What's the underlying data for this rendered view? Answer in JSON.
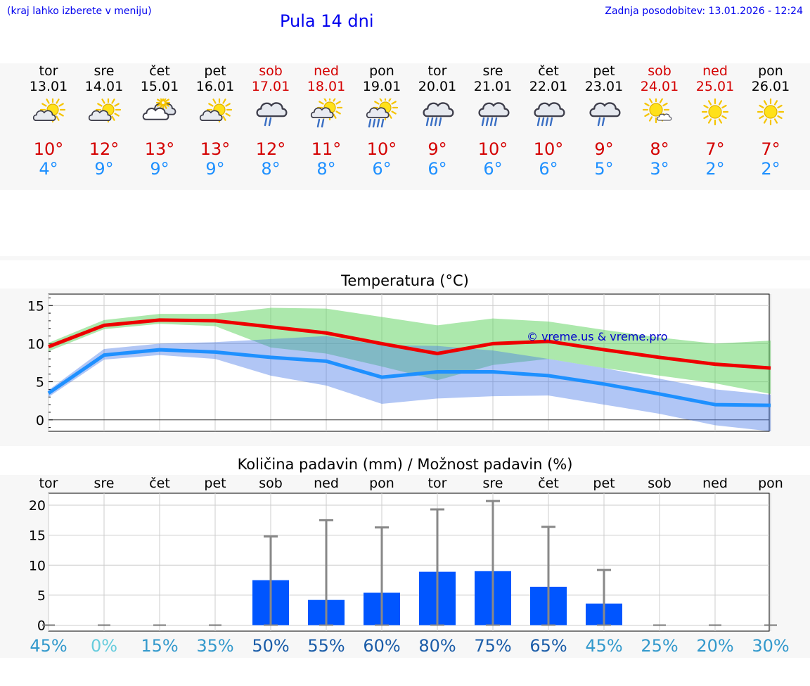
{
  "header": {
    "hint": "(kraj lahko izberete v meniju)",
    "title": "Pula 14 dni",
    "updated": "Zadnja posodobitev: 13.01.2026 - 12:24"
  },
  "colors": {
    "max": "#d40000",
    "min": "#1e90ff",
    "link": "#0000ee",
    "bar": "#0055ff"
  },
  "days": [
    {
      "name": "tor",
      "date": "13.01",
      "weekend": false,
      "icon": "partly-cloudy-icon",
      "max": "10°",
      "min": "4°"
    },
    {
      "name": "sre",
      "date": "14.01",
      "weekend": false,
      "icon": "partly-cloudy-icon",
      "max": "12°",
      "min": "9°"
    },
    {
      "name": "čet",
      "date": "15.01",
      "weekend": false,
      "icon": "cloudy-icon",
      "max": "13°",
      "min": "9°"
    },
    {
      "name": "pet",
      "date": "16.01",
      "weekend": false,
      "icon": "partly-cloudy-icon",
      "max": "13°",
      "min": "9°"
    },
    {
      "name": "sob",
      "date": "17.01",
      "weekend": true,
      "icon": "cloud-rain-icon",
      "max": "12°",
      "min": "8°"
    },
    {
      "name": "ned",
      "date": "18.01",
      "weekend": true,
      "icon": "sun-rain-icon",
      "max": "11°",
      "min": "8°"
    },
    {
      "name": "pon",
      "date": "19.01",
      "weekend": false,
      "icon": "sun-heavy-rain-icon",
      "max": "10°",
      "min": "6°"
    },
    {
      "name": "tor",
      "date": "20.01",
      "weekend": false,
      "icon": "cloud-heavy-rain-icon",
      "max": "9°",
      "min": "6°"
    },
    {
      "name": "sre",
      "date": "21.01",
      "weekend": false,
      "icon": "cloud-heavy-rain-icon",
      "max": "10°",
      "min": "6°"
    },
    {
      "name": "čet",
      "date": "22.01",
      "weekend": false,
      "icon": "cloud-heavy-rain-icon",
      "max": "10°",
      "min": "6°"
    },
    {
      "name": "pet",
      "date": "23.01",
      "weekend": false,
      "icon": "cloud-rain-icon",
      "max": "9°",
      "min": "5°"
    },
    {
      "name": "sob",
      "date": "24.01",
      "weekend": true,
      "icon": "sun-small-cloud-icon",
      "max": "8°",
      "min": "3°"
    },
    {
      "name": "ned",
      "date": "25.01",
      "weekend": true,
      "icon": "sun-icon",
      "max": "7°",
      "min": "2°"
    },
    {
      "name": "pon",
      "date": "26.01",
      "weekend": false,
      "icon": "sun-icon",
      "max": "7°",
      "min": "2°"
    }
  ],
  "chart_data": [
    {
      "type": "line",
      "title": "Temperatura (°C)",
      "watermark": "© vreme.us & vreme.pro",
      "x": [
        0,
        1,
        2,
        3,
        4,
        5,
        6,
        7,
        8,
        9,
        10,
        11,
        12,
        13
      ],
      "ylim": [
        -1.5,
        16.5
      ],
      "yticks": [
        0,
        5,
        10,
        15
      ],
      "grid": true,
      "series": [
        {
          "name": "max",
          "values": [
            9.6,
            12.4,
            13.1,
            13.0,
            12.2,
            11.4,
            10.0,
            8.7,
            10.0,
            10.3,
            9.2,
            8.2,
            7.3,
            6.8
          ]
        },
        {
          "name": "min",
          "values": [
            3.5,
            8.5,
            9.2,
            8.9,
            8.2,
            7.7,
            5.6,
            6.3,
            6.3,
            5.8,
            4.7,
            3.4,
            2.0,
            1.9
          ]
        }
      ],
      "bands": [
        {
          "name": "max-range",
          "lower": [
            9.0,
            11.9,
            12.6,
            12.3,
            9.5,
            8.7,
            7.0,
            5.2,
            7.2,
            8.0,
            6.8,
            5.8,
            4.8,
            3.4
          ],
          "upper": [
            10.1,
            13.1,
            13.9,
            13.9,
            14.7,
            14.6,
            13.5,
            12.4,
            13.3,
            12.9,
            11.8,
            10.8,
            10.0,
            10.4
          ]
        },
        {
          "name": "min-range",
          "lower": [
            3.0,
            7.9,
            8.5,
            8.0,
            5.8,
            4.5,
            2.1,
            2.8,
            3.1,
            3.2,
            2.0,
            0.8,
            -0.7,
            -1.5
          ],
          "upper": [
            3.9,
            9.3,
            10.0,
            10.2,
            10.6,
            11.0,
            9.8,
            9.7,
            9.1,
            8.0,
            6.8,
            5.4,
            4.0,
            3.3
          ]
        }
      ]
    },
    {
      "type": "bar",
      "title": "Količina padavin (mm) / Možnost padavin (%)",
      "categories": [
        "tor",
        "sre",
        "čet",
        "pet",
        "sob",
        "ned",
        "pon",
        "tor",
        "sre",
        "čet",
        "pet",
        "sob",
        "ned",
        "pon"
      ],
      "values": [
        0,
        0,
        0,
        0,
        7.5,
        4.2,
        5.4,
        8.9,
        9.0,
        6.4,
        3.6,
        0,
        0,
        0
      ],
      "error_high": [
        0,
        0,
        0,
        0,
        14.8,
        17.5,
        16.3,
        19.3,
        20.7,
        16.4,
        9.2,
        0,
        0,
        0
      ],
      "ylim": [
        -1,
        22
      ],
      "yticks": [
        0,
        5,
        10,
        15,
        20
      ],
      "probability": [
        "45%",
        "0%",
        "15%",
        "35%",
        "50%",
        "55%",
        "60%",
        "80%",
        "75%",
        "65%",
        "45%",
        "25%",
        "20%",
        "30%"
      ],
      "probability_values": [
        45,
        0,
        15,
        35,
        50,
        55,
        60,
        80,
        75,
        65,
        45,
        25,
        20,
        30
      ]
    }
  ]
}
